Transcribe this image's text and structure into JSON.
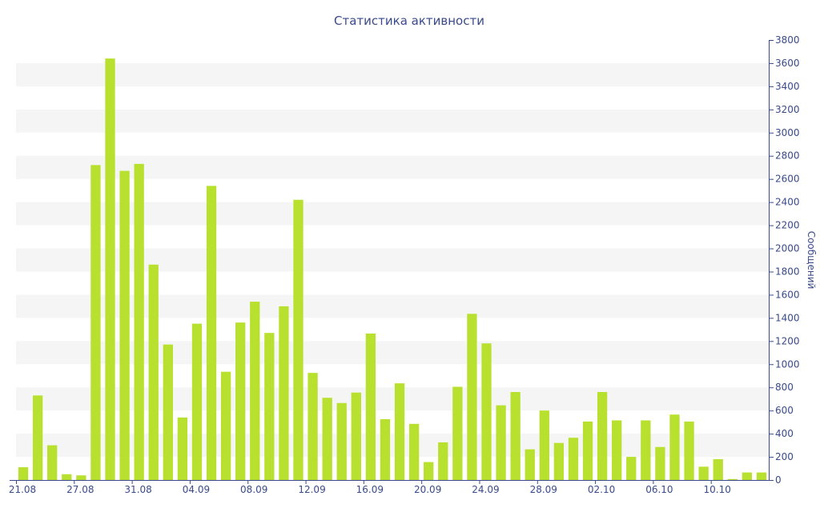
{
  "chart_data": {
    "type": "bar",
    "title": "Статистика активности",
    "ylabel": "Сообщений",
    "ylim": [
      0,
      3800
    ],
    "y_ticks": [
      0,
      200,
      400,
      600,
      800,
      1000,
      1200,
      1400,
      1600,
      1800,
      2000,
      2200,
      2400,
      2600,
      2800,
      3000,
      3200,
      3400,
      3600,
      3800
    ],
    "y_axis_side": "right",
    "grid": "alternating horizontal bands",
    "bar_color": "#b8e02e",
    "band_color": "#f5f5f5",
    "text_color": "#3a4a8c",
    "x_tick_labels": [
      "21.08",
      "27.08",
      "31.08",
      "04.09",
      "08.09",
      "12.09",
      "16.09",
      "20.09",
      "24.09",
      "28.09",
      "02.10",
      "06.10",
      "10.10"
    ],
    "values": [
      110,
      730,
      300,
      50,
      40,
      2720,
      3640,
      2670,
      2730,
      1860,
      1170,
      540,
      1350,
      2540,
      935,
      1360,
      1540,
      1270,
      1500,
      2420,
      925,
      710,
      665,
      755,
      1265,
      525,
      835,
      485,
      155,
      325,
      805,
      1435,
      1180,
      645,
      760,
      265,
      600,
      320,
      365,
      505,
      760,
      515,
      200,
      515,
      285,
      565,
      505,
      115,
      180,
      8,
      65,
      65
    ]
  }
}
